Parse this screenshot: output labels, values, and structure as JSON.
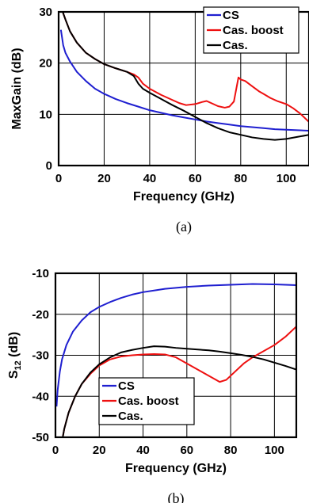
{
  "chart_data": [
    {
      "type": "line",
      "caption": "(a)",
      "xlabel": "Frequency (GHz)",
      "ylabel": "MaxGain (dB)",
      "xlim": [
        0,
        110
      ],
      "ylim": [
        0,
        30
      ],
      "xticks": [
        0,
        20,
        40,
        60,
        80,
        100
      ],
      "yticks": [
        0,
        10,
        20,
        30
      ],
      "grid": true,
      "legend_position": "top-right",
      "series": [
        {
          "name": "CS",
          "color": "#1f1fd0",
          "points": [
            [
              1,
              26.5
            ],
            [
              2,
              23.5
            ],
            [
              3,
              22
            ],
            [
              5,
              20.3
            ],
            [
              8,
              18.3
            ],
            [
              12,
              16.5
            ],
            [
              16,
              15
            ],
            [
              20,
              14
            ],
            [
              25,
              13
            ],
            [
              30,
              12.2
            ],
            [
              35,
              11.5
            ],
            [
              40,
              10.8
            ],
            [
              45,
              10.3
            ],
            [
              50,
              9.8
            ],
            [
              55,
              9.4
            ],
            [
              60,
              9
            ],
            [
              65,
              8.6
            ],
            [
              70,
              8.3
            ],
            [
              75,
              8
            ],
            [
              80,
              7.7
            ],
            [
              85,
              7.5
            ],
            [
              90,
              7.3
            ],
            [
              95,
              7.1
            ],
            [
              100,
              7
            ],
            [
              105,
              6.9
            ],
            [
              110,
              6.8
            ]
          ]
        },
        {
          "name": "Cas. boost",
          "color": "#ee1010",
          "points": [
            [
              1,
              31
            ],
            [
              3,
              28.5
            ],
            [
              5,
              26.2
            ],
            [
              8,
              24
            ],
            [
              12,
              22
            ],
            [
              16,
              20.8
            ],
            [
              20,
              19.8
            ],
            [
              25,
              19
            ],
            [
              30,
              18.3
            ],
            [
              33,
              17.8
            ],
            [
              35,
              17.2
            ],
            [
              37,
              16
            ],
            [
              40,
              15
            ],
            [
              45,
              13.8
            ],
            [
              50,
              12.8
            ],
            [
              53,
              12.2
            ],
            [
              56,
              11.8
            ],
            [
              60,
              12
            ],
            [
              63,
              12.4
            ],
            [
              65,
              12.6
            ],
            [
              68,
              12
            ],
            [
              70,
              11.6
            ],
            [
              73,
              11.3
            ],
            [
              75,
              11.5
            ],
            [
              77,
              12.5
            ],
            [
              79,
              17.2
            ],
            [
              80,
              16.8
            ],
            [
              82,
              16.5
            ],
            [
              85,
              15.5
            ],
            [
              88,
              14.5
            ],
            [
              90,
              14
            ],
            [
              93,
              13.2
            ],
            [
              96,
              12.6
            ],
            [
              100,
              12
            ],
            [
              103,
              11.2
            ],
            [
              106,
              10.2
            ],
            [
              110,
              8.5
            ]
          ]
        },
        {
          "name": "Cas.",
          "color": "#000000",
          "points": [
            [
              1,
              31
            ],
            [
              3,
              28.5
            ],
            [
              5,
              26.2
            ],
            [
              8,
              24
            ],
            [
              12,
              22
            ],
            [
              16,
              20.8
            ],
            [
              20,
              19.8
            ],
            [
              25,
              19
            ],
            [
              30,
              18.3
            ],
            [
              33,
              17.5
            ],
            [
              35,
              16
            ],
            [
              37,
              15
            ],
            [
              40,
              14.2
            ],
            [
              45,
              13
            ],
            [
              50,
              11.8
            ],
            [
              55,
              10.7
            ],
            [
              60,
              9.5
            ],
            [
              65,
              8.3
            ],
            [
              70,
              7.3
            ],
            [
              75,
              6.5
            ],
            [
              80,
              6
            ],
            [
              85,
              5.5
            ],
            [
              90,
              5.2
            ],
            [
              95,
              5
            ],
            [
              100,
              5.2
            ],
            [
              105,
              5.6
            ],
            [
              110,
              6
            ]
          ]
        }
      ]
    },
    {
      "type": "line",
      "caption": "(b)",
      "xlabel": "Frequency (GHz)",
      "ylabel_main": "S",
      "ylabel_sub": "12",
      "ylabel_tail": " (dB)",
      "xlim": [
        0,
        110
      ],
      "ylim": [
        -50,
        -10
      ],
      "xticks": [
        0,
        20,
        40,
        60,
        80,
        100
      ],
      "yticks": [
        -50,
        -40,
        -30,
        -20,
        -10
      ],
      "grid": true,
      "legend_position": "bottom-left",
      "series": [
        {
          "name": "CS",
          "color": "#1f1fd0",
          "points": [
            [
              0.5,
              -42.5
            ],
            [
              1,
              -38.5
            ],
            [
              2,
              -34
            ],
            [
              3,
              -31
            ],
            [
              5,
              -27.5
            ],
            [
              8,
              -24.2
            ],
            [
              12,
              -21.5
            ],
            [
              16,
              -19.5
            ],
            [
              20,
              -18.2
            ],
            [
              25,
              -17
            ],
            [
              30,
              -16
            ],
            [
              35,
              -15.2
            ],
            [
              40,
              -14.6
            ],
            [
              45,
              -14.2
            ],
            [
              50,
              -13.8
            ],
            [
              60,
              -13.3
            ],
            [
              70,
              -13
            ],
            [
              80,
              -12.8
            ],
            [
              90,
              -12.6
            ],
            [
              100,
              -12.7
            ],
            [
              110,
              -12.9
            ]
          ]
        },
        {
          "name": "Cas. boost",
          "color": "#ee1010",
          "points": [
            [
              2,
              -54
            ],
            [
              4,
              -48
            ],
            [
              6,
              -44
            ],
            [
              9,
              -40
            ],
            [
              12,
              -37
            ],
            [
              16,
              -34.5
            ],
            [
              20,
              -32.5
            ],
            [
              25,
              -31
            ],
            [
              30,
              -30.3
            ],
            [
              35,
              -30
            ],
            [
              40,
              -29.8
            ],
            [
              45,
              -29.7
            ],
            [
              50,
              -29.8
            ],
            [
              55,
              -30.5
            ],
            [
              60,
              -32
            ],
            [
              65,
              -33.5
            ],
            [
              70,
              -35
            ],
            [
              75,
              -36.5
            ],
            [
              78,
              -36
            ],
            [
              82,
              -34
            ],
            [
              86,
              -32
            ],
            [
              90,
              -30.5
            ],
            [
              95,
              -29
            ],
            [
              100,
              -27.5
            ],
            [
              105,
              -25.5
            ],
            [
              110,
              -23
            ]
          ]
        },
        {
          "name": "Cas.",
          "color": "#000000",
          "points": [
            [
              2,
              -54
            ],
            [
              4,
              -48
            ],
            [
              6,
              -44
            ],
            [
              9,
              -40
            ],
            [
              12,
              -37
            ],
            [
              16,
              -34.2
            ],
            [
              20,
              -32.2
            ],
            [
              25,
              -30.5
            ],
            [
              30,
              -29.3
            ],
            [
              35,
              -28.7
            ],
            [
              40,
              -28.2
            ],
            [
              45,
              -27.8
            ],
            [
              50,
              -27.9
            ],
            [
              55,
              -28.2
            ],
            [
              60,
              -28.4
            ],
            [
              65,
              -28.6
            ],
            [
              70,
              -28.8
            ],
            [
              75,
              -29.1
            ],
            [
              80,
              -29.5
            ],
            [
              85,
              -29.9
            ],
            [
              90,
              -30.4
            ],
            [
              95,
              -31
            ],
            [
              100,
              -31.8
            ],
            [
              105,
              -32.6
            ],
            [
              110,
              -33.5
            ]
          ]
        }
      ]
    }
  ]
}
